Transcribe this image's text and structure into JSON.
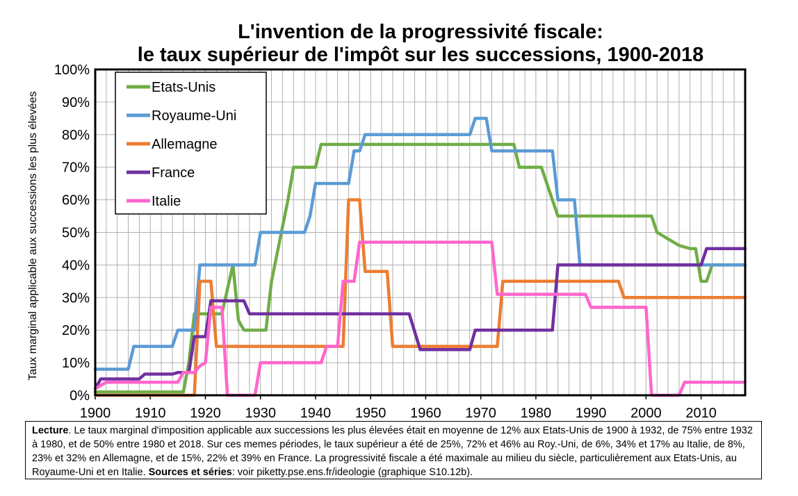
{
  "title_line1": "L'invention de la progressivité fiscale:",
  "title_line2": "le taux supérieur de l'impôt sur les successions, 1900-2018",
  "note": {
    "lead": "Lecture",
    "text": ". Le taux marginal d'imposition applicable aux successions les plus élevées était en moyenne de 12% aux Etats-Unis de 1900 à 1932, de 75% entre 1932 à 1980, et de 50% entre 1980 et 2018. Sur ces memes périodes, le taux supérieur a été de 25%, 72% et 46% au Roy.-Uni, de 6%, 34% et 17% au Italie, de 8%, 23% et 32% en Allemagne, et de 15%, 22% et 39% en France. La progressivité fiscale a été maximale au milieu du siècle, particulièrement aux Etats-Unis, au Royaume-Uni et en Italie. ",
    "sources_label": "Sources et séries",
    "sources_text": ": voir piketty.pse.ens.fr/ideologie (graphique S10.12b)."
  },
  "chart_data": {
    "type": "line",
    "title": "L'invention de la progressivité fiscale: le taux supérieur de l'impôt sur les successions, 1900-2018",
    "xlabel": "",
    "ylabel": "Taux marginal applicable aux successions les plus élevées",
    "xlim": [
      1900,
      2018
    ],
    "ylim": [
      0,
      100
    ],
    "x_ticks": [
      "1900",
      "1910",
      "1920",
      "1930",
      "1940",
      "1950",
      "1960",
      "1970",
      "1980",
      "1990",
      "2000",
      "2010"
    ],
    "y_ticks": [
      "0%",
      "10%",
      "20%",
      "30%",
      "40%",
      "50%",
      "60%",
      "70%",
      "80%",
      "90%",
      "100%"
    ],
    "grid": true,
    "legend_position": "top-left",
    "series": [
      {
        "name": "Etats-Unis",
        "color": "#70ad47",
        "points": [
          [
            1900,
            1
          ],
          [
            1916,
            1
          ],
          [
            1917,
            10
          ],
          [
            1918,
            25
          ],
          [
            1919,
            25
          ],
          [
            1921,
            25
          ],
          [
            1923,
            25
          ],
          [
            1925,
            40
          ],
          [
            1926,
            23
          ],
          [
            1927,
            20
          ],
          [
            1931,
            20
          ],
          [
            1932,
            35
          ],
          [
            1935,
            60
          ],
          [
            1936,
            70
          ],
          [
            1940,
            70
          ],
          [
            1941,
            77
          ],
          [
            1976,
            77
          ],
          [
            1977,
            70
          ],
          [
            1981,
            70
          ],
          [
            1982,
            65
          ],
          [
            1984,
            55
          ],
          [
            1997,
            55
          ],
          [
            1998,
            55
          ],
          [
            2001,
            55
          ],
          [
            2002,
            50
          ],
          [
            2006,
            46
          ],
          [
            2008,
            45
          ],
          [
            2009,
            45
          ],
          [
            2010,
            35
          ],
          [
            2011,
            35
          ],
          [
            2012,
            40
          ],
          [
            2018,
            40
          ]
        ]
      },
      {
        "name": "Royaume-Uni",
        "color": "#5b9bd5",
        "points": [
          [
            1900,
            8
          ],
          [
            1906,
            8
          ],
          [
            1907,
            15
          ],
          [
            1914,
            15
          ],
          [
            1915,
            20
          ],
          [
            1918,
            20
          ],
          [
            1919,
            40
          ],
          [
            1929,
            40
          ],
          [
            1930,
            50
          ],
          [
            1938,
            50
          ],
          [
            1939,
            55
          ],
          [
            1940,
            65
          ],
          [
            1946,
            65
          ],
          [
            1947,
            75
          ],
          [
            1948,
            75
          ],
          [
            1949,
            80
          ],
          [
            1968,
            80
          ],
          [
            1969,
            85
          ],
          [
            1971,
            85
          ],
          [
            1972,
            75
          ],
          [
            1983,
            75
          ],
          [
            1984,
            60
          ],
          [
            1987,
            60
          ],
          [
            1988,
            40
          ],
          [
            2018,
            40
          ]
        ]
      },
      {
        "name": "Allemagne",
        "color": "#ed7d31",
        "points": [
          [
            1900,
            0
          ],
          [
            1918,
            0
          ],
          [
            1919,
            35
          ],
          [
            1921,
            35
          ],
          [
            1922,
            15
          ],
          [
            1945,
            15
          ],
          [
            1946,
            60
          ],
          [
            1948,
            60
          ],
          [
            1949,
            38
          ],
          [
            1953,
            38
          ],
          [
            1954,
            15
          ],
          [
            1973,
            15
          ],
          [
            1974,
            35
          ],
          [
            1995,
            35
          ],
          [
            1996,
            30
          ],
          [
            2018,
            30
          ]
        ]
      },
      {
        "name": "France",
        "color": "#7030a0",
        "points": [
          [
            1900,
            2
          ],
          [
            1901,
            5
          ],
          [
            1908,
            5
          ],
          [
            1909,
            6.5
          ],
          [
            1914,
            6.5
          ],
          [
            1915,
            7
          ],
          [
            1917,
            7
          ],
          [
            1918,
            18
          ],
          [
            1920,
            18
          ],
          [
            1921,
            29
          ],
          [
            1927,
            29
          ],
          [
            1928,
            25
          ],
          [
            1957,
            25
          ],
          [
            1959,
            14
          ],
          [
            1968,
            14
          ],
          [
            1969,
            20
          ],
          [
            1983,
            20
          ],
          [
            1984,
            40
          ],
          [
            2010,
            40
          ],
          [
            2011,
            45
          ],
          [
            2018,
            45
          ]
        ]
      },
      {
        "name": "Italie",
        "color": "#ff66cc",
        "points": [
          [
            1900,
            2
          ],
          [
            1902,
            4
          ],
          [
            1915,
            4
          ],
          [
            1916,
            7
          ],
          [
            1918,
            7
          ],
          [
            1919,
            9
          ],
          [
            1920,
            10
          ],
          [
            1921,
            27
          ],
          [
            1923,
            27
          ],
          [
            1924,
            0
          ],
          [
            1929,
            0
          ],
          [
            1930,
            10
          ],
          [
            1941,
            10
          ],
          [
            1942,
            15
          ],
          [
            1944,
            15
          ],
          [
            1945,
            35
          ],
          [
            1947,
            35
          ],
          [
            1948,
            47
          ],
          [
            1972,
            47
          ],
          [
            1973,
            31
          ],
          [
            1989,
            31
          ],
          [
            1990,
            27
          ],
          [
            2000,
            27
          ],
          [
            2001,
            0
          ],
          [
            2006,
            0
          ],
          [
            2007,
            4
          ],
          [
            2018,
            4
          ]
        ]
      }
    ]
  }
}
